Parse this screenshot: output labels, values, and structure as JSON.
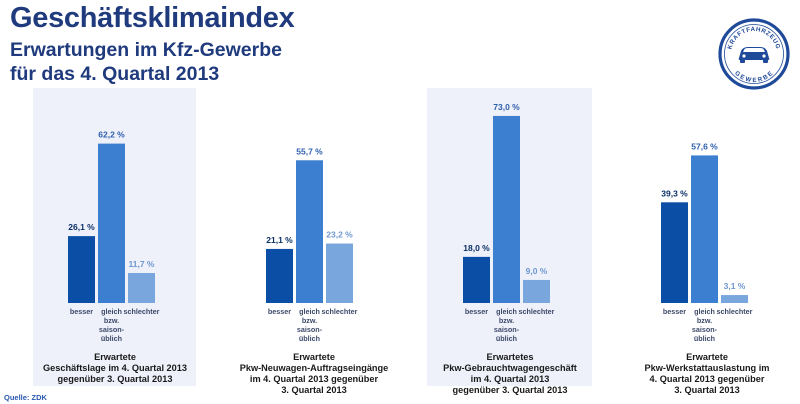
{
  "header": {
    "title": "Geschäftsklimaindex",
    "subtitle_line1": "Erwartungen im Kfz-Gewerbe",
    "subtitle_line2": "für das 4. Quartal 2013"
  },
  "logo": {
    "text_top": "KRAFTFAHRZEUG",
    "text_bottom": "GEWERBE",
    "icon": "car-icon"
  },
  "colors": {
    "besser": "#0a4ea6",
    "gleich": "#3c7fd0",
    "schlechter": "#7aa6de",
    "panel_highlight": "#eef0fa",
    "title": "#1f3a7d"
  },
  "chart_data": {
    "type": "bar",
    "categories": [
      "besser",
      "gleich bzw. saison-üblich",
      "schlechter"
    ],
    "value_unit": "%",
    "ylim": [
      0,
      80
    ],
    "groups": [
      {
        "caption_lines": [
          "Erwartete",
          "Geschäftslage im 4. Quartal 2013",
          "gegenüber 3. Quartal 2013"
        ],
        "values": [
          26.1,
          62.2,
          11.7
        ],
        "labels": [
          "26,1 %",
          "62,2 %",
          "11,7 %"
        ],
        "highlighted": true
      },
      {
        "caption_lines": [
          "Erwartete",
          "Pkw-Neuwagen-Auftragseingänge",
          "im 4. Quartal 2013 gegenüber",
          "3. Quartal 2013"
        ],
        "values": [
          21.1,
          55.7,
          23.2
        ],
        "labels": [
          "21,1 %",
          "55,7 %",
          "23,2 %"
        ],
        "highlighted": false
      },
      {
        "caption_lines": [
          "Erwartetes",
          "Pkw-Gebrauchtwagengeschäft",
          "im 4. Quartal 2013",
          "gegenüber 3. Quartal 2013"
        ],
        "values": [
          18.0,
          73.0,
          9.0
        ],
        "labels": [
          "18,0 %",
          "73,0 %",
          "9,0 %"
        ],
        "highlighted": true
      },
      {
        "caption_lines": [
          "Erwartete",
          "Pkw-Werkstattauslastung im",
          "4. Quartal 2013 gegenüber",
          "3. Quartal 2013"
        ],
        "values": [
          39.3,
          57.6,
          3.1
        ],
        "labels": [
          "39,3 %",
          "57,6 %",
          "3,1 %"
        ],
        "highlighted": false
      }
    ]
  },
  "source": "Quelle: ZDK"
}
